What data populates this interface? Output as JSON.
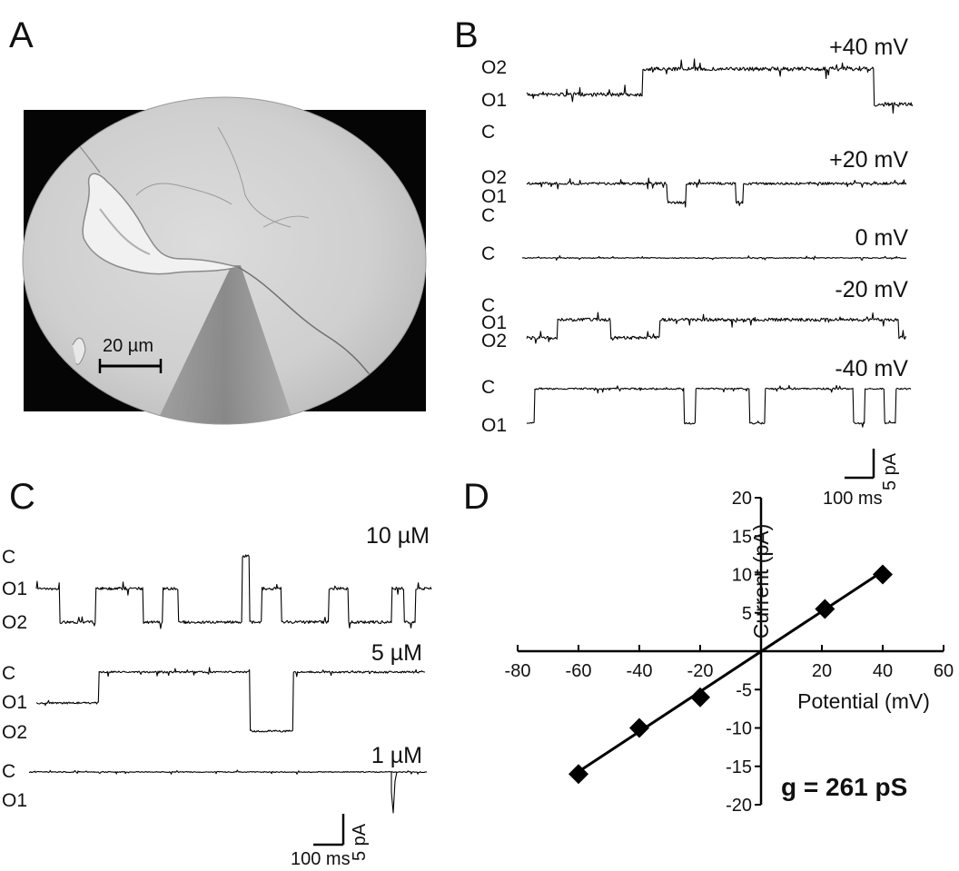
{
  "panels": {
    "a": {
      "letter": "A",
      "scale_bar": "20 µm"
    },
    "b": {
      "letter": "B",
      "traces": [
        {
          "voltage": "+40 mV",
          "states": [
            "O2",
            "O1",
            "C"
          ]
        },
        {
          "voltage": "+20 mV",
          "states": [
            "O2",
            "O1",
            "C"
          ]
        },
        {
          "voltage": "0 mV",
          "states": [
            "C"
          ]
        },
        {
          "voltage": "-20 mV",
          "states": [
            "C",
            "O1",
            "O2"
          ]
        },
        {
          "voltage": "-40 mV",
          "states": [
            "C",
            "O1"
          ]
        }
      ],
      "scale": {
        "current": "5 pA",
        "time": "100 ms"
      }
    },
    "c": {
      "letter": "C",
      "traces": [
        {
          "concentration": "10 µM",
          "states": [
            "C",
            "O1",
            "O2"
          ]
        },
        {
          "concentration": "5 µM",
          "states": [
            "C",
            "O1",
            "O2"
          ]
        },
        {
          "concentration": "1 µM",
          "states": [
            "C",
            "O1"
          ]
        }
      ],
      "scale": {
        "current": "5 pA",
        "time": "100 ms"
      }
    },
    "d": {
      "letter": "D",
      "annotation": "g = 261 pS"
    }
  },
  "chart_data": {
    "type": "scatter",
    "xlabel": "Potential (mV)",
    "ylabel": "Current (pA)",
    "xlim": [
      -80,
      60
    ],
    "ylim": [
      -20,
      20
    ],
    "xticks": [
      -80,
      -60,
      -40,
      -20,
      20,
      40,
      60
    ],
    "yticks": [
      -20,
      -15,
      -10,
      -5,
      5,
      10,
      15,
      20
    ],
    "x": [
      -60,
      -40,
      -20,
      21,
      40
    ],
    "y": [
      -16,
      -10,
      -6,
      5.5,
      10
    ],
    "fit_line": {
      "x": [
        -60,
        40
      ],
      "y": [
        -15.7,
        10.4
      ]
    },
    "marker": "diamond",
    "colors": {
      "marker": "#000000",
      "line": "#000000"
    }
  }
}
